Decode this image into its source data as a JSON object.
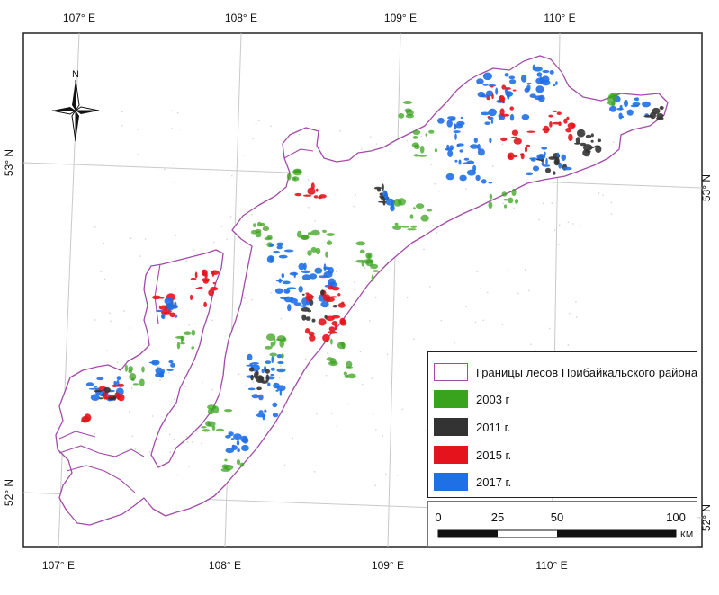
{
  "grid": {
    "top_lon_labels": [
      "107° E",
      "108° E",
      "109° E",
      "110° E"
    ],
    "bottom_lon_labels": [
      "107° E",
      "108° E",
      "109° E",
      "110° E"
    ],
    "left_lat_labels": [
      "53° N",
      "52° N"
    ],
    "right_lat_labels": [
      "53° N",
      "52° N"
    ]
  },
  "north_arrow": {
    "label": "N"
  },
  "legend": {
    "items": [
      {
        "label": "Границы лесов Прибайкальского района",
        "color": "#a24aa8",
        "style": "outline"
      },
      {
        "label": "2003 г",
        "color": "#3aa31d",
        "style": "fill"
      },
      {
        "label": "2011 г.",
        "color": "#333333",
        "style": "fill"
      },
      {
        "label": "2015 г.",
        "color": "#e5141c",
        "style": "fill"
      },
      {
        "label": "2017 г.",
        "color": "#1f6fe6",
        "style": "fill"
      }
    ]
  },
  "scale_bar": {
    "ticks": [
      "0",
      "25",
      "50",
      "100"
    ],
    "unit": "КМ"
  },
  "colors": {
    "boundary": "#a24aa8",
    "graticule": "#c8c8c8",
    "frame": "#222222"
  }
}
